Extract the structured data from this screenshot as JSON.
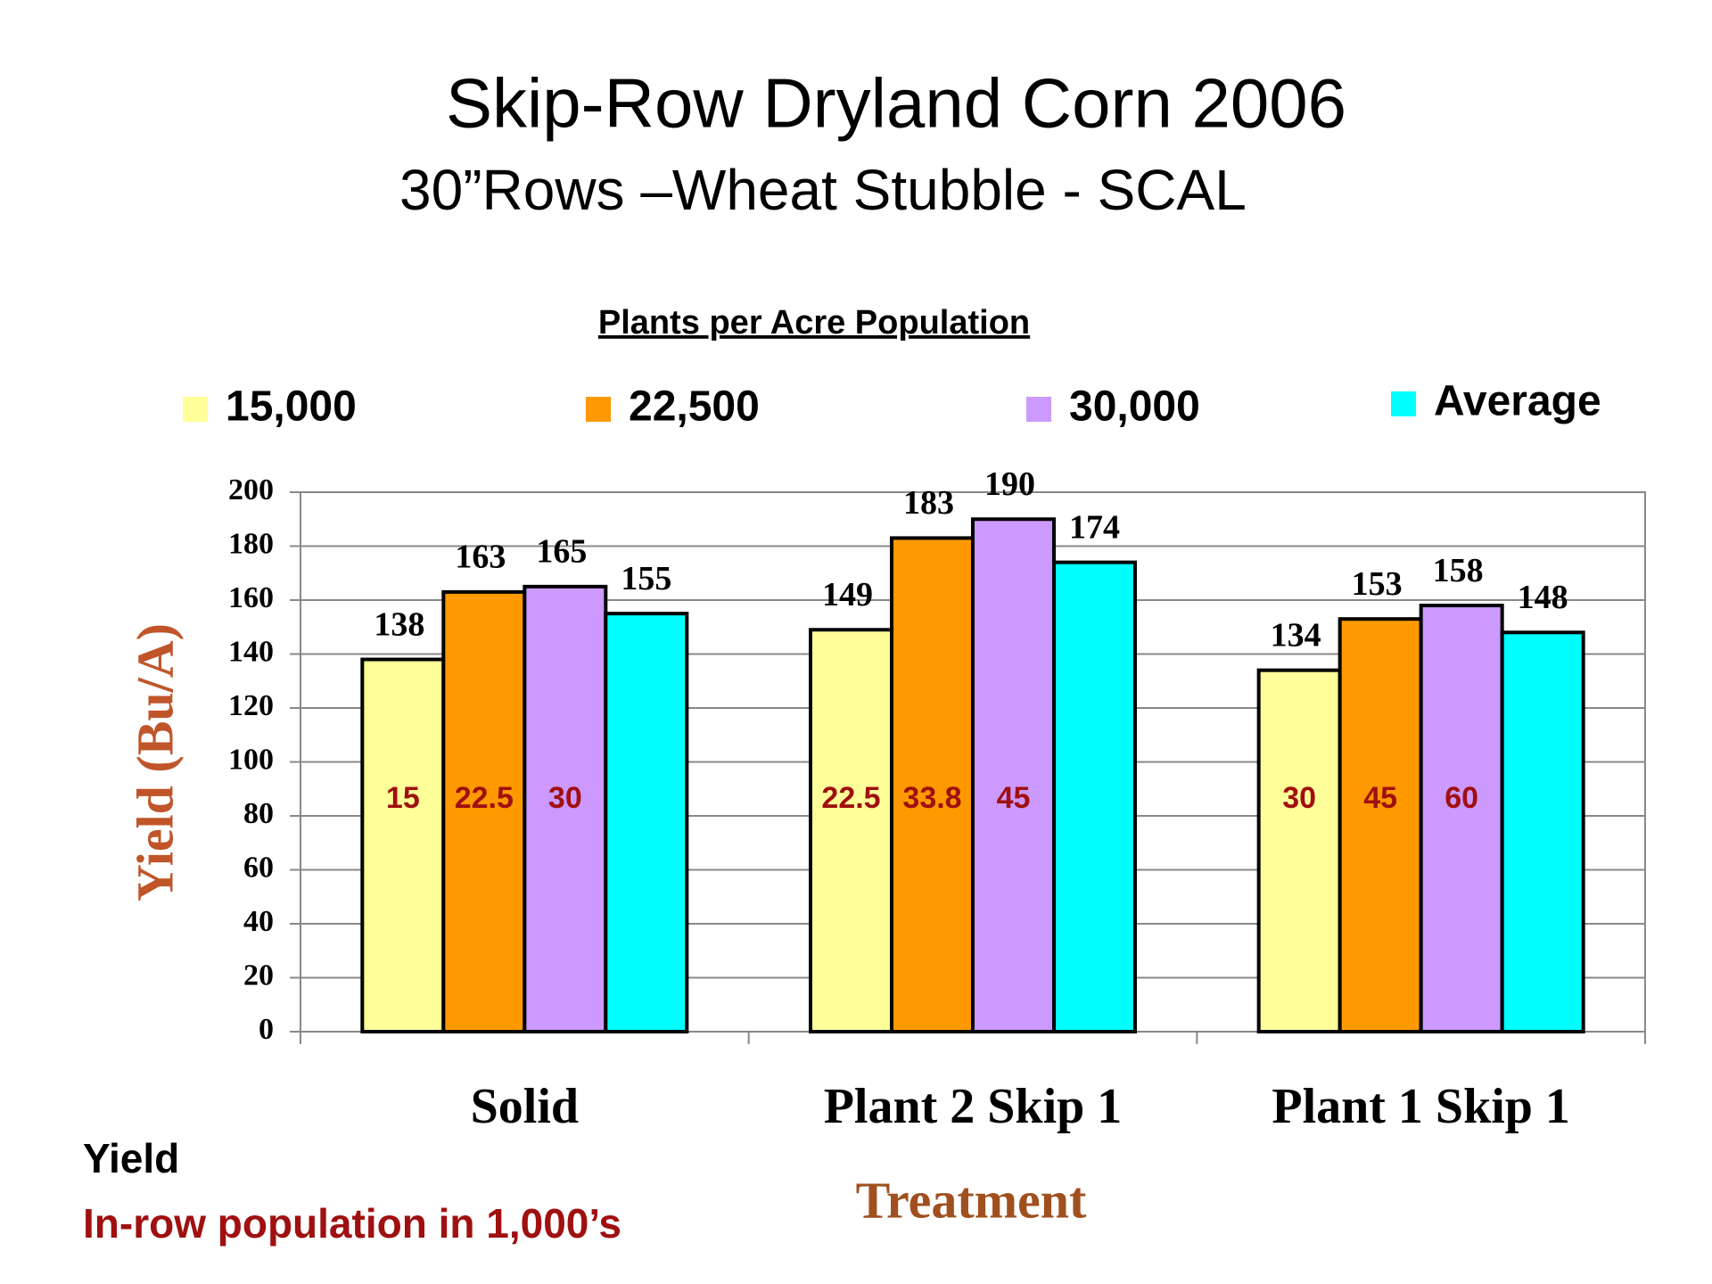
{
  "chart_data": {
    "type": "bar",
    "title": "Skip-Row Dryland Corn 2006",
    "subtitle": "30”Rows –Wheat Stubble - SCAL",
    "legend_title": "Plants per Acre Population",
    "categories": [
      "Solid",
      "Plant 2 Skip 1",
      "Plant 1 Skip 1"
    ],
    "series": [
      {
        "name": "15,000",
        "color": "#ffff99",
        "values": [
          138,
          149,
          134
        ],
        "population_values": [
          15,
          22.5,
          30
        ]
      },
      {
        "name": "22,500",
        "color": "#ff9900",
        "values": [
          163,
          183,
          153
        ],
        "population_values": [
          22.5,
          33.8,
          45
        ]
      },
      {
        "name": "30,000",
        "color": "#cc99ff",
        "values": [
          165,
          190,
          158
        ],
        "population_values": [
          30,
          45,
          60
        ]
      },
      {
        "name": "Average",
        "color": "#00ffff",
        "values": [
          155,
          174,
          148
        ]
      }
    ],
    "ylabel": "Yield  (Bu/A)",
    "xlabel": "Treatment",
    "notes": [
      "Yield",
      "In-row population in 1,000’s"
    ],
    "ylim": [
      0,
      200
    ],
    "yticks": [
      0,
      20,
      40,
      60,
      80,
      100,
      120,
      140,
      160,
      180,
      200
    ],
    "grid": true,
    "legend_position": "top"
  }
}
